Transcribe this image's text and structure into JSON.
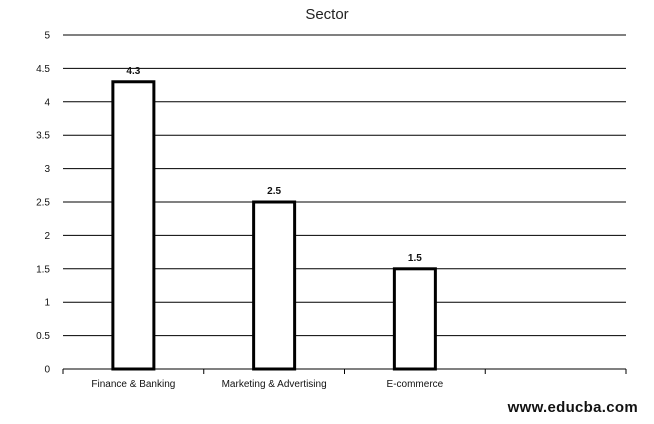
{
  "chart_data": {
    "type": "bar",
    "title": "Sector",
    "xlabel": "",
    "ylabel": "",
    "categories": [
      "Finance & Banking",
      "Marketing & Advertising",
      "E-commerce"
    ],
    "values": [
      4.3,
      2.5,
      1.5
    ],
    "data_labels": [
      "4.3",
      "2.5",
      "1.5"
    ],
    "ylim": [
      0,
      5
    ],
    "y_ticks": [
      "0",
      "0.5",
      "1",
      "1.5",
      "2",
      "2.5",
      "3",
      "3.5",
      "4",
      "4.5",
      "5"
    ],
    "grid": true,
    "legend": "none",
    "colors": {
      "bar_fill": "#ffffff",
      "bar_stroke": "#000000",
      "grid": "#000000"
    }
  },
  "watermark": "www.educba.com"
}
